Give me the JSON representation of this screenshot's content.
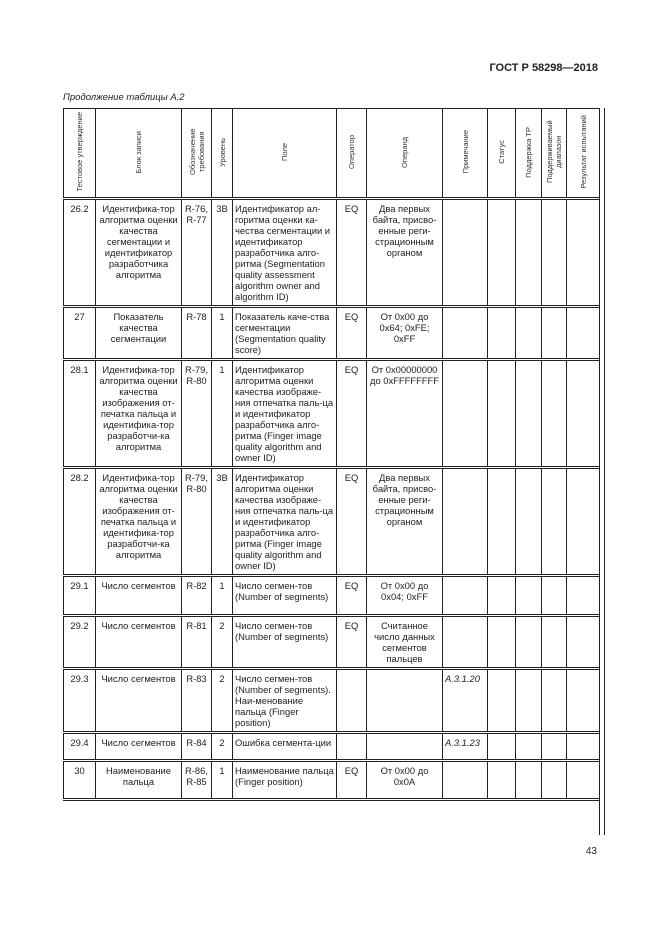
{
  "header": {
    "standard": "ГОСТ Р 58298—2018",
    "continuation": "Продолжение таблицы А.2",
    "page_number": "43"
  },
  "columns": [
    "Тестовое утверждение",
    "Блок записи",
    "Обозначение требования",
    "Уровень",
    "Поле",
    "Оператор",
    "Операнд",
    "Примечание",
    "Статус",
    "Поддержка ТР",
    "Поддерживаемый диапазон",
    "Результат испытаний"
  ],
  "rows": [
    {
      "id": "26.2",
      "block": "Идентифика-тор алгоритма оценки качества сегментации и идентификатор разработчика алгоритма",
      "req": "R-76, R-77",
      "level": "3B",
      "field": "Идентификатор ал-горитма оценки ка-чества сегментации и идентификатор разработчика алго-ритма (Segmentation quality assessment algorithm owner and algorithm ID)",
      "op": "EQ",
      "operand": "Два первых байта, присво-енные реги-страционным органом",
      "note": ""
    },
    {
      "id": "27",
      "block": "Показатель качества сегментации",
      "req": "R-78",
      "level": "1",
      "field": "Показатель каче-ства сегментации (Segmentation quality score)",
      "op": "EQ",
      "operand": "От 0x00 до 0x64; 0xFE; 0xFF",
      "note": ""
    },
    {
      "id": "28.1",
      "block": "Идентифика-тор алгоритма оценки качества изображения от-печатка пальца и идентифика-тор разработчи-ка алгоритма",
      "req": "R-79, R-80",
      "level": "1",
      "field": "Идентификатор алгоритма оценки качества изображе-ния отпечатка паль-ца и идентификатор разработчика алго-ритма (Finger image quality algorithm and owner ID)",
      "op": "EQ",
      "operand": "От 0x00000000 до 0xFFFFFFFF",
      "note": ""
    },
    {
      "id": "28.2",
      "block": "Идентифика-тор алгоритма оценки качества изображения от-печатка пальца и идентифика-тор разработчи-ка алгоритма",
      "req": "R-79, R-80",
      "level": "3B",
      "field": "Идентификатор алгоритма оценки качества изображе-ния отпечатка паль-ца и идентификатор разработчика алго-ритма (Finger image quality algorithm and owner ID)",
      "op": "EQ",
      "operand": "Два первых байта, присво-енные реги-страционным органом",
      "note": ""
    },
    {
      "id": "29.1",
      "block": "Число сегментов",
      "req": "R-82",
      "level": "1",
      "field": "Число сегмен-тов (Number of segments)",
      "op": "EQ",
      "operand": "От 0x00 до 0x04; 0xFF",
      "note": ""
    },
    {
      "id": "29.2",
      "block": "Число сегментов",
      "req": "R-81",
      "level": "2",
      "field": "Число сегмен-тов (Number of segments)",
      "op": "EQ",
      "operand": "Считанное число данных сегментов пальцев",
      "note": ""
    },
    {
      "id": "29.3",
      "block": "Число сегментов",
      "req": "R-83",
      "level": "2",
      "field": "Число сегмен-тов (Number of segments). Наи-менование пальца (Finger position)",
      "op": "",
      "operand": "",
      "note": "A.3.1.20"
    },
    {
      "id": "29.4",
      "block": "Число сегментов",
      "req": "R-84",
      "level": "2",
      "field": "Ошибка сегмента-ции",
      "op": "",
      "operand": "",
      "note": "A.3.1.23"
    },
    {
      "id": "30",
      "block": "Наименование пальца",
      "req": "R-86, R-85",
      "level": "1",
      "field": "Наименование пальца (Finger position)",
      "op": "EQ",
      "operand": "От 0x00 до 0x0A",
      "note": ""
    }
  ]
}
